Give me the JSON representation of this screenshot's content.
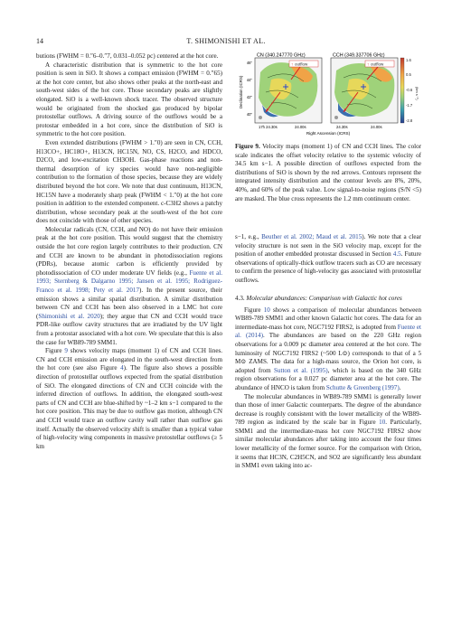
{
  "header": {
    "page_number": "14",
    "running_title": "T. SHIMONISHI ET AL."
  },
  "left_column": {
    "p1": "butions (FWHM = 0.″6–0.″7, 0.031–0.052 pc) centered at the hot core.",
    "p2": "A characteristic distribution that is symmetric to the hot core position is seen in SiO. It shows a compact emission (FWHM = 0.″65) at the hot core center, but also shows other peaks at the north-east and south-west sides of the hot core. Those secondary peaks are slightly elongated. SiO is a well-known shock tracer. The observed structure would be originated from the shocked gas produced by bipolar protostellar outflows. A driving source of the outflows would be a protostar embedded in a hot core, since the distribution of SiO is symmetric to the hot core position.",
    "p3": "Even extended distributions (FWHM > 1.″0) are seen in CN, CCH, H13CO+, HC18O+, H13CN, HC15N, NO, CS, H2CO, and HDCO, D2CO, and low-excitation CH3OH. Gas-phase reactions and non-thermal desorption of icy species would have non-negligible contribution to the formation of those species, because they are widely distributed beyond the hot core. We note that dust continuum, H13CN, HC15N have a moderately sharp peak (FWHM < 1.″0) at the hot core position in addition to the extended component. c-C3H2 shows a patchy distribution, whose secondary peak at the south-west of the hot core does not coincide with those of other species.",
    "p4": "Molecular radicals (CN, CCH, and NO) do not have their emission peak at the hot core position. This would suggest that the chemistry outside the hot core region largely contributes to their production.  CN and CCH are known to be abundant in photodissociation regions (PDRs), because atomic carbon is efficiently provided by photodissociation of CO under moderate UV fields (e.g.,",
    "p4_cites": "Fuente et al. 1993; Sternberg & Dalgarno 1995; Jansen et al. 1995; Rodriguez-Franco et al. 1998; Pety et al. 2017",
    "p4_b": "). In the present source, their emission shows a similar spatial distribution. A similar distribution between CN and CCH has been also observed in a LMC hot core (",
    "p4_cite2": "Shimonishi et al. 2020",
    "p4_c": "); they argue that CN and CCH would trace PDR-like outflow cavity structures that are irradiated by the UV light from a protostar associated with a hot core. We speculate that this is also the case for WB89-789 SMM1.",
    "p5_a": "Figure ",
    "p5_fig": "9",
    "p5_b": " shows velocity maps (moment 1) of CN and CCH lines. CN and CCH emission are elongated in the south-west direction from the hot core (see also Figure ",
    "p5_fig4": "4",
    "p5_c": "). The figure also shows a possible direction of protostellar outflows expected from the spatial distribution of SiO. The elongated directions of CN and CCH coincide with the inferred direction of outflows. In addition, the elongated south-west parts of CN and CCH are blue-shifted by ~1–2 km s−1 compared to the hot core position. This may be due to outflow gas motion, although CN and CCH would trace an outflow cavity wall rather than outflow gas itself. Actually the observed velocity shift is smaller than a typical value of high-velocity wing components in massive protostellar outflows (≥ 5 km"
  },
  "figure": {
    "panel_left_title": "CN (340.247770 GHz)",
    "panel_right_title": "CCH (349.337706 GHz)",
    "outflow_label": "outflow",
    "y_axis_label": "Declination (ICRS)",
    "x_axis_label": "Right Ascension (ICRS)",
    "y_ticks": [
      "46\"",
      "44\"",
      "42\"",
      "40\""
    ],
    "y_prefix": "-27°",
    "x_ticks_left": [
      "17h 24.30s",
      "24.00s"
    ],
    "x_ticks_right": [
      "24.30s",
      "24.00s"
    ],
    "colorbar_ticks": [
      "1.6",
      "0.5",
      "-0.6",
      "-1.7",
      "-2.8"
    ],
    "colorbar_label": "(km s⁻¹)",
    "caption_label": "Figure 9.",
    "caption_text": "Velocity maps (moment 1) of CN and CCH lines. The color scale indicates the offset velocity relative to the systemic velocity of 34.5 km s−1. A possible direction of outflows expected from the distributions of SiO is shown by the red arrows. Contours represent the integrated intensity distribution and the contour levels are 8%, 20%, 40%, and 60% of the peak value. Low signal-to-noise regions (S/N <5) are masked. The blue cross represents the 1.2 mm continuum center."
  },
  "right_column": {
    "r1_a": "s−1, e.g., ",
    "r1_cites": "Beuther et al. 2002; Maud et al. 2015",
    "r1_b": "). We note that a clear velocity structure is not seen in the SiO velocity map, except for the position of another embedded protostar discussed in Section ",
    "r1_sec": "4.5",
    "r1_c": ".  Future observations of optically-thick outflow tracers such as CO are necessary to confirm the presence of high-velocity gas associated with protostellar outflows.",
    "section_number": "4.3.",
    "section_title": "Molecular abundances: Comparison with Galactic hot cores",
    "r2_a": "Figure ",
    "r2_fig": "10",
    "r2_b": " shows a comparison of molecular abundances between WB89-789 SMM1 and other known Galactic hot cores. The data for an intermediate-mass hot core, NGC7192 FIRS2, is adopted from ",
    "r2_cite1": "Fuente et al. (2014)",
    "r2_c": ". The abundances are based on the 220 GHz region observations for a 0.009 pc diameter area centered at the hot core. The luminosity of NGC7192 FIRS2 (~500 L⊙) corresponds to that of a 5 M⊙ ZAMS. The data for a high-mass source, the Orion hot core, is adopted from ",
    "r2_cite2": "Sutton et al. (1995)",
    "r2_d": ", which is based on the 340 GHz region observations for a 0.027 pc diameter area at the hot core. The abundance of HNCO is taken from ",
    "r2_cite3": "Schutte & Greenberg (1997)",
    "r2_e": ".",
    "r3_a": "The molecular abundances in WB89-789 SMM1 is generally lower than those of inner Galactic counterparts. The degree of the abundance decrease is roughly consistent with the lower metallicity of the WB89-789 region as indicated by the scale bar in Figure ",
    "r3_fig": "10",
    "r3_b": ". Particularly, SMM1 and the intermediate-mass hot core NGC7192 FIRS2 show similar molecular abundances after taking into account the four times lower metallicity of the former source. For the comparison with Orion, it seems that HC3N, C2H5CN, and SO2 are significantly less abundant in SMM1 even taking into ac-"
  }
}
